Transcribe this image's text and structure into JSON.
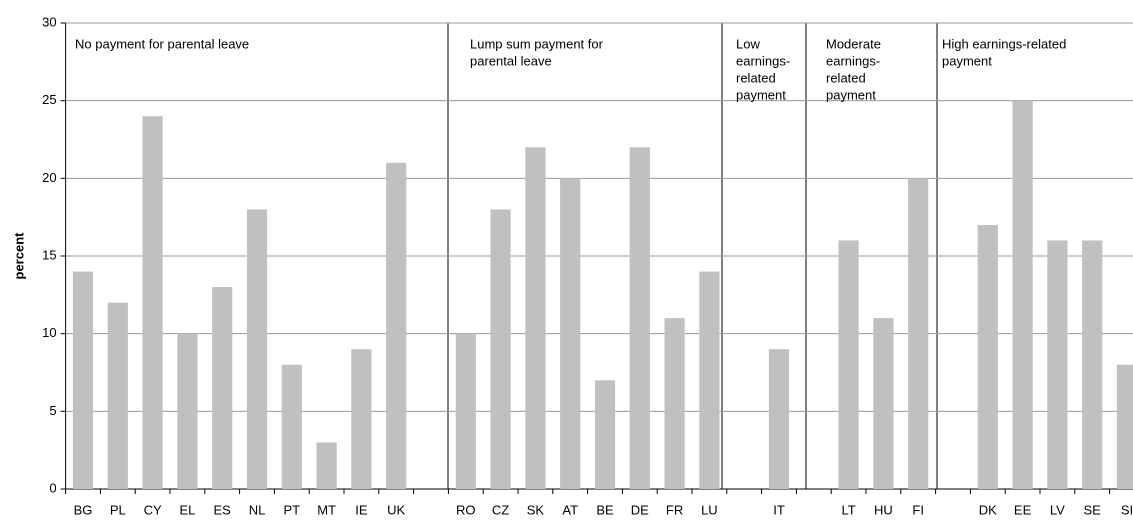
{
  "chart_data": {
    "type": "bar",
    "y_label": "percent",
    "annotations": [
      [
        "No payment for parental leave"
      ],
      [
        "Lump sum payment for",
        "parental leave"
      ],
      [
        "Low",
        "earnings-",
        "related",
        "payment"
      ],
      [
        "Moderate",
        "earnings-",
        "related",
        "payment"
      ],
      [
        "High earnings-related",
        "payment"
      ]
    ],
    "categories": [
      "BG",
      "PL",
      "CY",
      "EL",
      "ES",
      "NL",
      "PT",
      "MT",
      "IE",
      "UK",
      null,
      "RO",
      "CZ",
      "SK",
      "AT",
      "BE",
      "DE",
      "FR",
      "LU",
      null,
      "IT",
      null,
      "LT",
      "HU",
      "FI",
      null,
      "DK",
      "EE",
      "LV",
      "SE",
      "SI"
    ],
    "values": [
      14,
      12,
      24,
      10,
      13,
      18,
      8,
      3,
      9,
      21,
      null,
      10,
      18,
      22,
      20,
      7,
      22,
      11,
      14,
      null,
      9,
      null,
      16,
      11,
      20,
      null,
      17,
      25,
      16,
      16,
      8
    ],
    "color": "#c0c0c0",
    "ylim": [
      0,
      30
    ],
    "yticks": [
      0,
      5,
      10,
      15,
      20,
      25,
      30
    ],
    "grid": true
  }
}
